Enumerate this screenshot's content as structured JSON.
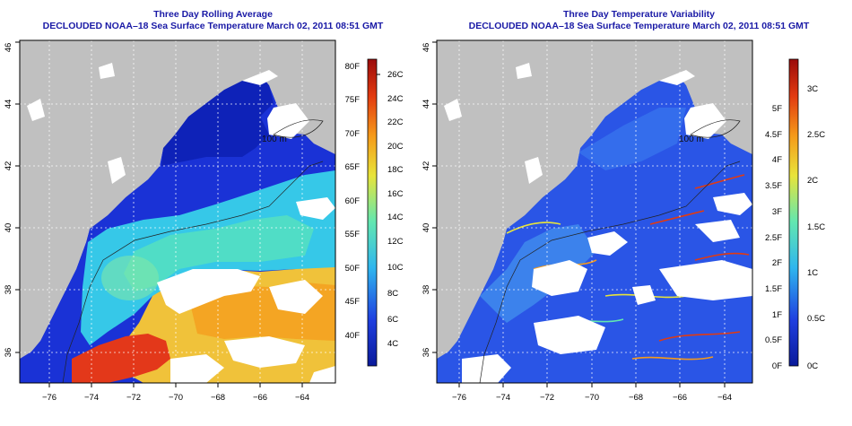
{
  "panels": [
    {
      "title": "Three Day Rolling Average",
      "subtitle": "DECLOUDED NOAA–18 Sea Surface Temperature March 02, 2011 08:51 GMT",
      "x_ticks": [
        "−76",
        "−74",
        "−72",
        "−70",
        "−68",
        "−66",
        "−64"
      ],
      "y_ticks": [
        "36",
        "38",
        "40",
        "42",
        "44",
        "46"
      ],
      "colorbar": {
        "fahrenheit": [
          "80F",
          "75F",
          "70F",
          "65F",
          "60F",
          "55F",
          "50F",
          "45F",
          "40F"
        ],
        "celsius": [
          "26C",
          "24C",
          "22C",
          "20C",
          "18C",
          "16C",
          "14C",
          "12C",
          "10C",
          "8C",
          "6C",
          "4C"
        ]
      },
      "contour_label": "100 m",
      "colors": [
        "#0a1a9a",
        "#1f3fe0",
        "#2fb6ee",
        "#62e7b0",
        "#e8e43a",
        "#f59a1a",
        "#e23a10",
        "#9b0b0b"
      ]
    },
    {
      "title": "Three Day Temperature Variability",
      "subtitle": "DECLOUDED NOAA–18 Sea Surface Temperature March 02, 2011 08:51 GMT",
      "x_ticks": [
        "−76",
        "−74",
        "−72",
        "−70",
        "−68",
        "−66",
        "−64"
      ],
      "y_ticks": [
        "36",
        "38",
        "40",
        "42",
        "44",
        "46"
      ],
      "colorbar": {
        "fahrenheit": [
          "5F",
          "4.5F",
          "4F",
          "3.5F",
          "3F",
          "2.5F",
          "2F",
          "1.5F",
          "1F",
          "0.5F",
          "0F"
        ],
        "celsius": [
          "3C",
          "2.5C",
          "2C",
          "1.5C",
          "1C",
          "0.5C",
          "0C"
        ]
      },
      "contour_label": "100 m",
      "colors": [
        "#0a1a9a",
        "#1f3fe0",
        "#2fb6ee",
        "#62e7b0",
        "#e8e43a",
        "#f59a1a",
        "#e23a10",
        "#9b0b0b"
      ]
    }
  ]
}
